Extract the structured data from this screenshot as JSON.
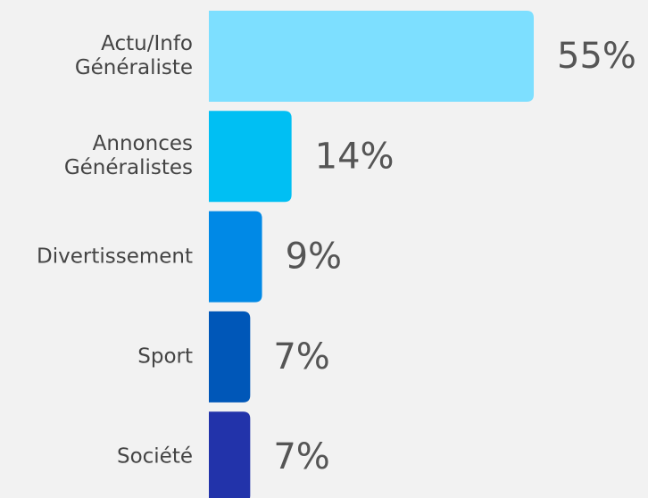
{
  "chart_data": {
    "type": "bar",
    "orientation": "horizontal",
    "categories": [
      "Actu/Info Généraliste",
      "Annonces Généralistes",
      "Divertissement",
      "Sport",
      "Société"
    ],
    "values": [
      55,
      14,
      9,
      7,
      7
    ],
    "value_labels": [
      "55%",
      "14%",
      "9%",
      "7%",
      "7%"
    ],
    "colors": [
      "#7ddfff",
      "#00bff3",
      "#0089e6",
      "#0057b8",
      "#2233aa"
    ]
  }
}
